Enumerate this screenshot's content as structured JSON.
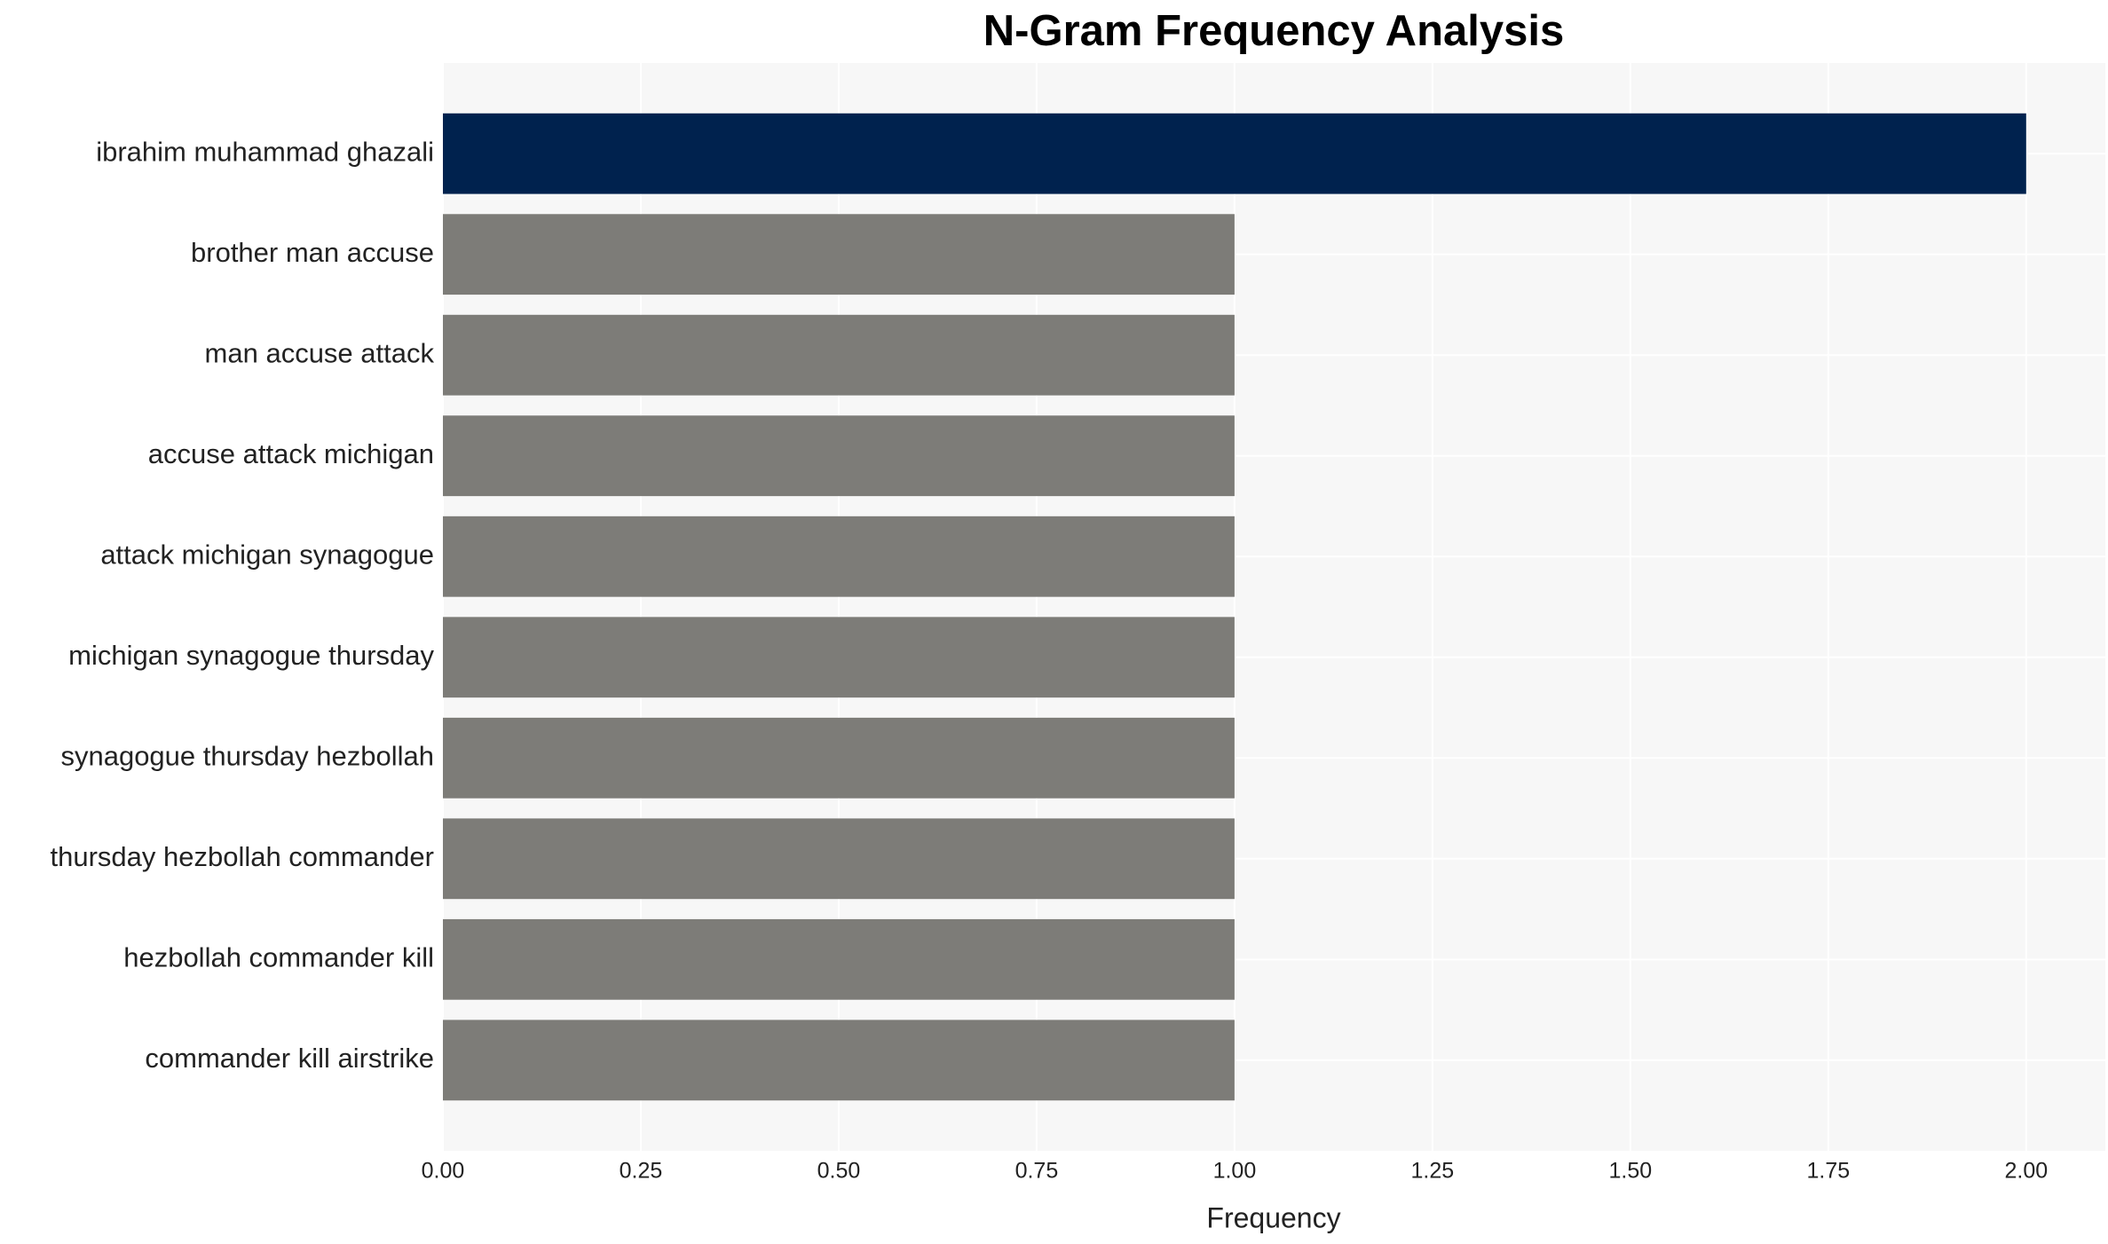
{
  "chart_data": {
    "type": "bar",
    "orientation": "horizontal",
    "title": "N-Gram Frequency Analysis",
    "x_label": "Frequency",
    "categories": [
      "ibrahim muhammad ghazali",
      "brother man accuse",
      "man accuse attack",
      "accuse attack michigan",
      "attack michigan synagogue",
      "michigan synagogue thursday",
      "synagogue thursday hezbollah",
      "thursday hezbollah commander",
      "hezbollah commander kill",
      "commander kill airstrike"
    ],
    "values": [
      2,
      1,
      1,
      1,
      1,
      1,
      1,
      1,
      1,
      1
    ],
    "colors": [
      "#00224e",
      "#7d7c78",
      "#7d7c78",
      "#7d7c78",
      "#7d7c78",
      "#7d7c78",
      "#7d7c78",
      "#7d7c78",
      "#7d7c78",
      "#7d7c78"
    ],
    "xlim": [
      0,
      2.1
    ],
    "xticks": [
      {
        "value": 0,
        "label": "0.00"
      },
      {
        "value": 0.25,
        "label": "0.25"
      },
      {
        "value": 0.5,
        "label": "0.50"
      },
      {
        "value": 0.75,
        "label": "0.75"
      },
      {
        "value": 1,
        "label": "1.00"
      },
      {
        "value": 1.25,
        "label": "1.25"
      },
      {
        "value": 1.5,
        "label": "1.50"
      },
      {
        "value": 1.75,
        "label": "1.75"
      },
      {
        "value": 2,
        "label": "2.00"
      }
    ],
    "grid": true
  }
}
